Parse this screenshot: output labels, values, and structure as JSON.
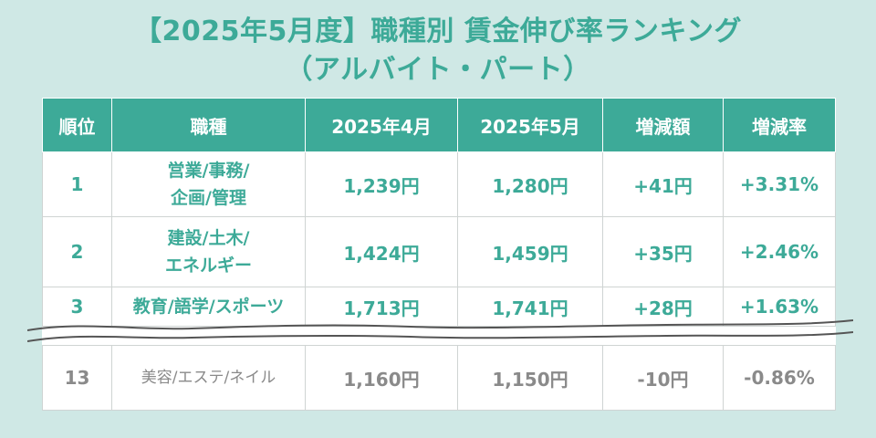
{
  "title": {
    "line1": "【2025年5月度】職種別 賃金伸び率ランキング",
    "line2": "（アルバイト・パート）"
  },
  "table": {
    "headers": [
      "順位",
      "職種",
      "2025年4月",
      "2025年5月",
      "増減額",
      "増減率"
    ],
    "rows": [
      {
        "rank": "1",
        "job_line1": "営業/事務/",
        "job_line2": "企画/管理",
        "apr": "1,239円",
        "may": "1,280円",
        "diff": "+41円",
        "rate": "+3.31%"
      },
      {
        "rank": "2",
        "job_line1": "建設/土木/",
        "job_line2": "エネルギー",
        "apr": "1,424円",
        "may": "1,459円",
        "diff": "+35円",
        "rate": "+2.46%"
      },
      {
        "rank": "3",
        "job_line1": "教育/語学/スポーツ",
        "job_line2": "",
        "apr": "1,713円",
        "may": "1,741円",
        "diff": "+28円",
        "rate": "+1.63%"
      },
      {
        "rank": "13",
        "job_line1": "美容/エステ/ネイル",
        "job_line2": "",
        "apr": "1,160円",
        "may": "1,150円",
        "diff": "-10円",
        "rate": "-0.86%"
      }
    ]
  },
  "colors": {
    "accent": "#3daa98",
    "background": "#cfe8e5",
    "muted_text": "#8a8a8a"
  }
}
